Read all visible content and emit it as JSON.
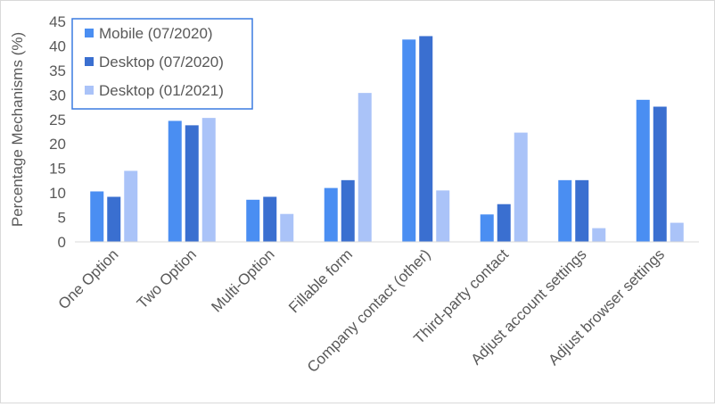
{
  "chart_data": {
    "type": "bar",
    "title": "",
    "xlabel": "",
    "ylabel": "Percentage Mechanisms (%)",
    "ylim": [
      0,
      45
    ],
    "yticks": [
      0,
      5,
      10,
      15,
      20,
      25,
      30,
      35,
      40,
      45
    ],
    "grid": false,
    "legend_position": "top-left",
    "categories": [
      "One Option",
      "Two Option",
      "Multi-Option",
      "Fillable form",
      "Company contact (other)",
      "Third-party contact",
      "Adjust account settings",
      "Adjust browser settings"
    ],
    "series": [
      {
        "name": "Mobile (07/2020)",
        "color": "#4a8ef2",
        "values": [
          10.3,
          24.7,
          8.6,
          11.0,
          41.3,
          5.6,
          12.6,
          29.0
        ]
      },
      {
        "name": "Desktop (07/2020)",
        "color": "#3a6fd0",
        "values": [
          9.2,
          23.8,
          9.2,
          12.6,
          42.0,
          7.7,
          12.6,
          27.6
        ]
      },
      {
        "name": "Desktop (01/2021)",
        "color": "#aac3f8",
        "values": [
          14.5,
          25.3,
          5.7,
          30.4,
          10.5,
          22.3,
          2.8,
          3.9
        ]
      }
    ]
  }
}
